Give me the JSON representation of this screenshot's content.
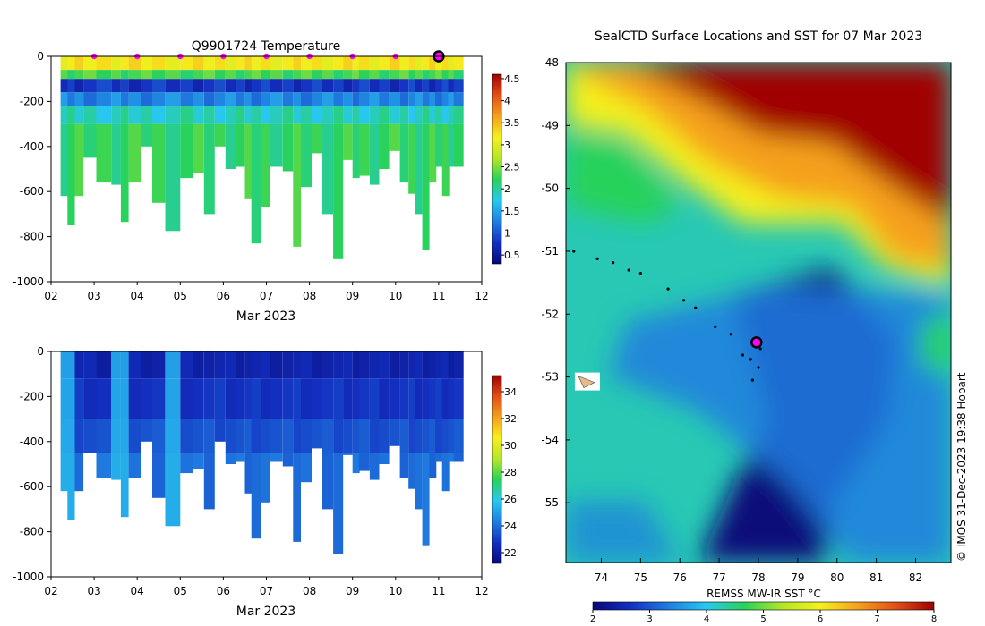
{
  "chart_data": [
    {
      "type": "heatmap",
      "panel": "temperature-section",
      "title": "Q9901724  Temperature",
      "xlabel": "Mar 2023",
      "ylabel": "",
      "xlim": [
        2,
        12
      ],
      "ylim": [
        -1000,
        0
      ],
      "x_ticks": [
        "02",
        "03",
        "04",
        "05",
        "06",
        "07",
        "08",
        "09",
        "10",
        "11",
        "12"
      ],
      "y_ticks": [
        "0",
        "-200",
        "-400",
        "-600",
        "-800",
        "-1000"
      ],
      "colorbar": {
        "range": [
          0.3,
          4.6
        ],
        "ticks": [
          "0.5",
          "1",
          "1.5",
          "2",
          "2.5",
          "3",
          "3.5",
          "4",
          "4.5"
        ],
        "colors": [
          "#08087a",
          "#1330c0",
          "#1f7ee0",
          "#28c8f0",
          "#28d25a",
          "#b4e628",
          "#f5f01e",
          "#f5a01e",
          "#e05018",
          "#a00000"
        ]
      },
      "profiles": [
        {
          "day": 2.22,
          "max_depth": 620
        },
        {
          "day": 2.38,
          "max_depth": 750
        },
        {
          "day": 2.55,
          "max_depth": 620
        },
        {
          "day": 2.75,
          "max_depth": 450
        },
        {
          "day": 3.05,
          "max_depth": 560
        },
        {
          "day": 3.4,
          "max_depth": 570
        },
        {
          "day": 3.62,
          "max_depth": 735
        },
        {
          "day": 3.8,
          "max_depth": 560
        },
        {
          "day": 4.1,
          "max_depth": 400
        },
        {
          "day": 4.35,
          "max_depth": 650
        },
        {
          "day": 4.65,
          "max_depth": 775
        },
        {
          "day": 5.0,
          "max_depth": 540
        },
        {
          "day": 5.3,
          "max_depth": 520
        },
        {
          "day": 5.55,
          "max_depth": 700
        },
        {
          "day": 5.8,
          "max_depth": 400
        },
        {
          "day": 6.05,
          "max_depth": 500
        },
        {
          "day": 6.3,
          "max_depth": 490
        },
        {
          "day": 6.5,
          "max_depth": 630
        },
        {
          "day": 6.65,
          "max_depth": 830
        },
        {
          "day": 6.88,
          "max_depth": 670
        },
        {
          "day": 7.08,
          "max_depth": 490
        },
        {
          "day": 7.38,
          "max_depth": 510
        },
        {
          "day": 7.62,
          "max_depth": 845
        },
        {
          "day": 7.8,
          "max_depth": 580
        },
        {
          "day": 8.05,
          "max_depth": 430
        },
        {
          "day": 8.3,
          "max_depth": 700
        },
        {
          "day": 8.55,
          "max_depth": 900
        },
        {
          "day": 8.78,
          "max_depth": 460
        },
        {
          "day": 9.0,
          "max_depth": 540
        },
        {
          "day": 9.15,
          "max_depth": 530
        },
        {
          "day": 9.4,
          "max_depth": 570
        },
        {
          "day": 9.62,
          "max_depth": 500
        },
        {
          "day": 9.85,
          "max_depth": 420
        },
        {
          "day": 10.1,
          "max_depth": 560
        },
        {
          "day": 10.3,
          "max_depth": 610
        },
        {
          "day": 10.45,
          "max_depth": 700
        },
        {
          "day": 10.62,
          "max_depth": 860
        },
        {
          "day": 10.78,
          "max_depth": 560
        },
        {
          "day": 10.92,
          "max_depth": 490
        },
        {
          "day": 11.08,
          "max_depth": 620
        },
        {
          "day": 11.22,
          "max_depth": 490
        },
        {
          "day": 11.35,
          "max_depth": 490
        }
      ],
      "layers": [
        {
          "top": 0,
          "bottom": 60,
          "value": 3.2
        },
        {
          "top": 60,
          "bottom": 100,
          "value": 2.3
        },
        {
          "top": 100,
          "bottom": 160,
          "value": 0.8
        },
        {
          "top": 160,
          "bottom": 220,
          "value": 1.3
        },
        {
          "top": 220,
          "bottom": 300,
          "value": 1.9
        },
        {
          "top": 300,
          "bottom": 1000,
          "value": 2.2
        }
      ],
      "markers": [
        {
          "day": 3,
          "depth": 0
        },
        {
          "day": 4,
          "depth": 0
        },
        {
          "day": 5,
          "depth": 0
        },
        {
          "day": 6,
          "depth": 0
        },
        {
          "day": 7,
          "depth": 0
        },
        {
          "day": 8,
          "depth": 0
        },
        {
          "day": 9,
          "depth": 0
        },
        {
          "day": 10,
          "depth": 0
        }
      ],
      "current": {
        "day": 11.0,
        "depth": 0
      }
    },
    {
      "type": "heatmap",
      "panel": "salinity-section",
      "title": "",
      "xlabel": "Mar 2023",
      "ylabel": "",
      "xlim": [
        2,
        12
      ],
      "ylim": [
        -1000,
        0
      ],
      "x_ticks": [
        "02",
        "03",
        "04",
        "05",
        "06",
        "07",
        "08",
        "09",
        "10",
        "11",
        "12"
      ],
      "y_ticks": [
        "0",
        "-200",
        "-400",
        "-600",
        "-800",
        "-1000"
      ],
      "colorbar": {
        "range": [
          21.2,
          35.2
        ],
        "ticks": [
          "22",
          "24",
          "26",
          "28",
          "30",
          "32",
          "34"
        ],
        "colors": [
          "#08087a",
          "#1330c0",
          "#1f7ee0",
          "#28c8f0",
          "#28d25a",
          "#b4e628",
          "#f5f01e",
          "#f5a01e",
          "#e05018",
          "#a00000"
        ]
      },
      "layers": [
        {
          "top": 0,
          "bottom": 120,
          "value": 22.3
        },
        {
          "top": 120,
          "bottom": 300,
          "value": 22.8
        },
        {
          "top": 300,
          "bottom": 450,
          "value": 23.4
        },
        {
          "top": 450,
          "bottom": 1000,
          "value": 24.0
        }
      ],
      "bright_profiles": [
        2.22,
        2.38,
        3.4,
        3.62,
        4.65
      ]
    },
    {
      "type": "heatmap",
      "panel": "sst-map",
      "title": "SealCTD Surface Locations and SST for 07 Mar 2023",
      "xlabel": "",
      "ylabel": "",
      "xlim": [
        73.1,
        82.9
      ],
      "ylim": [
        -55.95,
        -48
      ],
      "x_ticks": [
        "74",
        "75",
        "76",
        "77",
        "78",
        "79",
        "80",
        "81",
        "82"
      ],
      "y_ticks": [
        "-48",
        "-49",
        "-50",
        "-51",
        "-52",
        "-53",
        "-54",
        "-55"
      ],
      "colorbar": {
        "label": "REMSS MW-IR SST °C",
        "range": [
          2,
          8
        ],
        "ticks": [
          "2",
          "3",
          "4",
          "5",
          "6",
          "7",
          "8"
        ],
        "colors": [
          "#08087a",
          "#1330c0",
          "#1f7ee0",
          "#28c8f0",
          "#28d25a",
          "#b4e628",
          "#f5f01e",
          "#f5a01e",
          "#e05018",
          "#a00000"
        ]
      },
      "track": [
        {
          "lon": 73.3,
          "lat": -51.0
        },
        {
          "lon": 73.9,
          "lat": -51.12
        },
        {
          "lon": 74.3,
          "lat": -51.18
        },
        {
          "lon": 74.7,
          "lat": -51.3
        },
        {
          "lon": 75.0,
          "lat": -51.35
        },
        {
          "lon": 75.7,
          "lat": -51.6
        },
        {
          "lon": 76.1,
          "lat": -51.78
        },
        {
          "lon": 76.4,
          "lat": -51.9
        },
        {
          "lon": 76.9,
          "lat": -52.2
        },
        {
          "lon": 77.3,
          "lat": -52.32
        },
        {
          "lon": 77.6,
          "lat": -52.65
        },
        {
          "lon": 77.8,
          "lat": -52.72
        },
        {
          "lon": 78.0,
          "lat": -52.85
        },
        {
          "lon": 77.85,
          "lat": -53.05
        },
        {
          "lon": 78.05,
          "lat": -52.55
        },
        {
          "lon": 77.92,
          "lat": -52.42
        }
      ],
      "current_location": {
        "lon": 77.95,
        "lat": -52.45
      },
      "land": {
        "lon": 73.6,
        "lat": -53.1
      }
    }
  ],
  "footer": {
    "credit": "© IMOS 31-Dec-2023 19:38 Hobart"
  }
}
